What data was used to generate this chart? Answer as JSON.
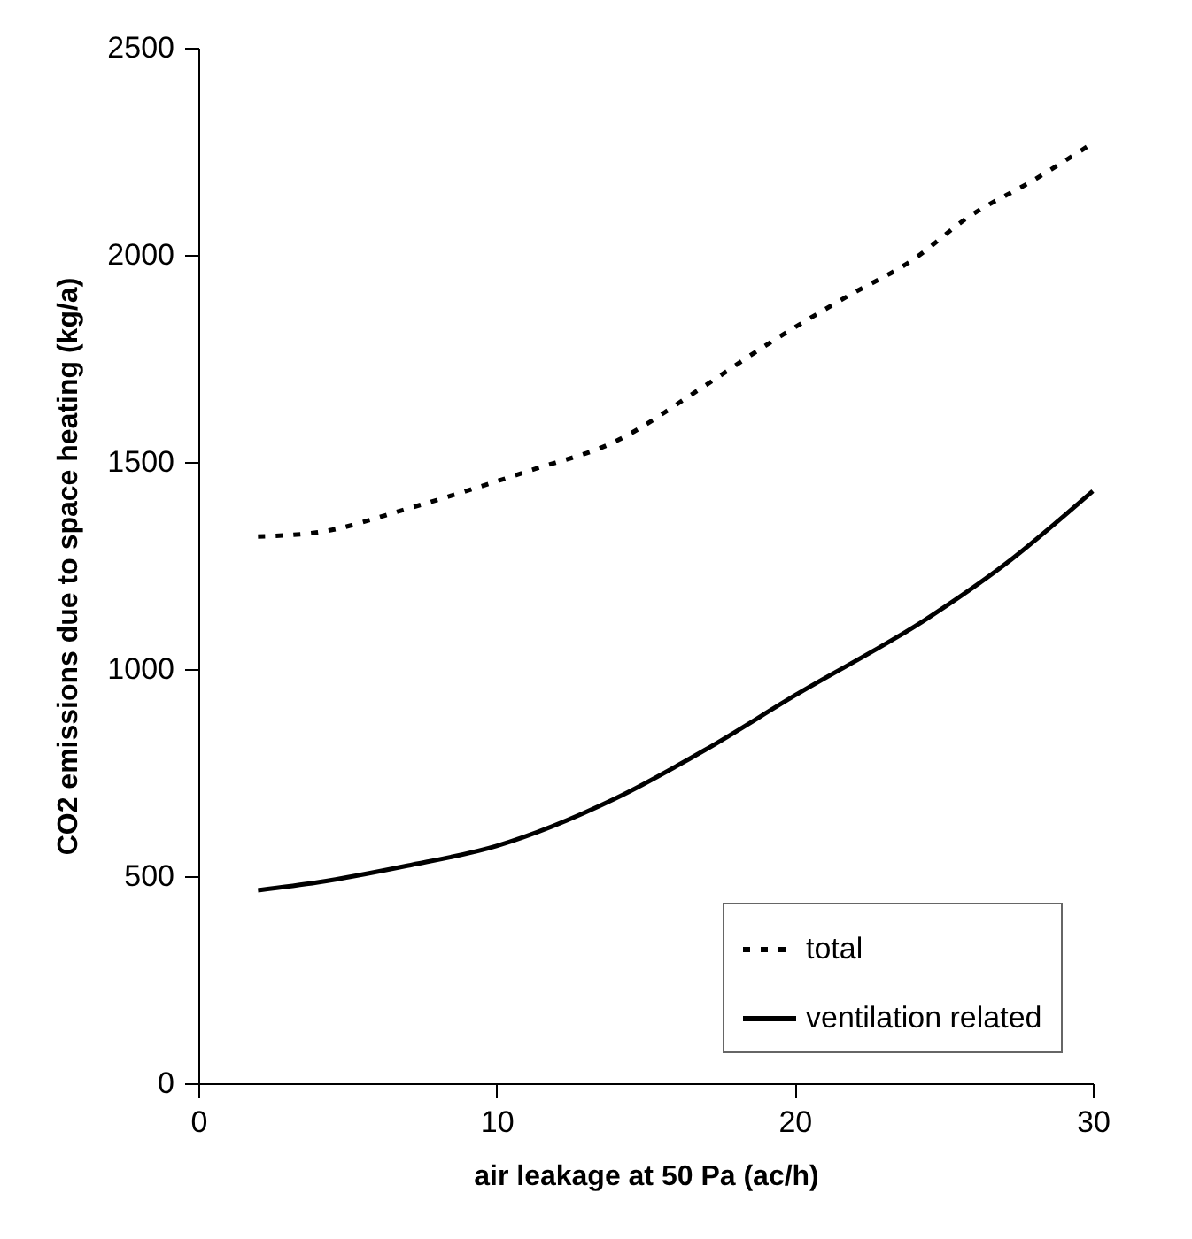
{
  "chart_data": {
    "type": "line",
    "xlabel": "air leakage at 50 Pa (ac/h)",
    "ylabel": "CO2 emissions due to space heating (kg/a)",
    "xlim": [
      0,
      30
    ],
    "xticks": [
      0,
      10,
      20,
      30
    ],
    "ylim": [
      0,
      2500
    ],
    "yticks": [
      0,
      500,
      1000,
      1500,
      2000,
      2500
    ],
    "legend": "bottom right",
    "grid": false,
    "marker": "none",
    "series": [
      {
        "name": "total",
        "color": "#000000",
        "line_style": "dotted",
        "x": [
          2,
          4,
          7.1,
          11.1,
          14,
          16.8,
          19,
          21.7,
          24,
          25.8,
          28,
          30
        ],
        "values": [
          1320,
          1330,
          1389,
          1479,
          1550,
          1675,
          1780,
          1897,
          1990,
          2090,
          2180,
          2270
        ]
      },
      {
        "name": "ventilation related",
        "color": "#000000",
        "line_style": "solid",
        "x": [
          2,
          4,
          7,
          10,
          14,
          17,
          20,
          24.4,
          27,
          30
        ],
        "values": [
          466,
          485,
          525,
          573,
          688,
          805,
          936,
          1120,
          1250,
          1430
        ]
      }
    ]
  }
}
